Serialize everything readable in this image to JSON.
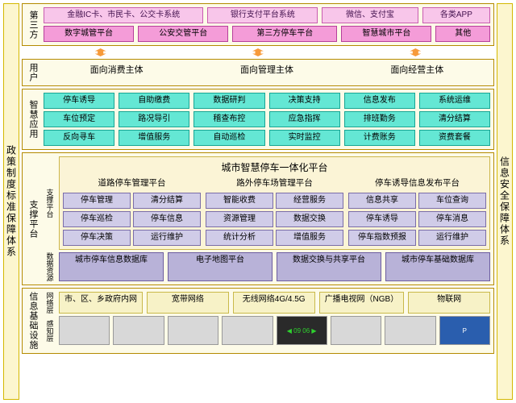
{
  "left_label": "政策制度标准保障体系",
  "right_label": "信息安全保障体系",
  "sections": {
    "third_party": {
      "label": "第三方",
      "row1": [
        "金融IC卡、市民卡、公交卡系统",
        "银行支付平台系统",
        "微信、支付宝",
        "各类APP"
      ],
      "row2": [
        "数字城管平台",
        "公安交管平台",
        "第三方停车平台",
        "智慧城市平台",
        "其他"
      ]
    },
    "user": {
      "label": "用户",
      "items": [
        "面向消费主体",
        "面向管理主体",
        "面向经营主体"
      ]
    },
    "app": {
      "label": "智慧应用",
      "rows": [
        [
          "停车诱导",
          "自助缴费",
          "数据研判",
          "决策支持",
          "信息发布",
          "系统运维"
        ],
        [
          "车位预定",
          "路况导引",
          "稽查布控",
          "应急指挥",
          "排班勤务",
          "清分结算"
        ],
        [
          "反向寻车",
          "增值服务",
          "自动巡检",
          "实时监控",
          "计费账务",
          "资费套餐"
        ]
      ]
    },
    "support": {
      "label": "支撑平台",
      "panel_title": "城市智慧停车一体化平台",
      "sub1": "支撑平台",
      "sub2": "数据资源",
      "cols": [
        {
          "title": "道路停车管理平台",
          "rows": [
            [
              "停车管理",
              "清分结算"
            ],
            [
              "停车巡检",
              "停车信息"
            ],
            [
              "停车决策",
              "运行维护"
            ]
          ]
        },
        {
          "title": "路外停车场管理平台",
          "rows": [
            [
              "智能收费",
              "经营服务"
            ],
            [
              "资源管理",
              "数据交换"
            ],
            [
              "统计分析",
              "增值服务"
            ]
          ]
        },
        {
          "title": "停车诱导信息发布平台",
          "rows": [
            [
              "信息共享",
              "车位查询"
            ],
            [
              "停车诱导",
              "停车消息"
            ],
            [
              "停车指数预报",
              "运行维护"
            ]
          ]
        }
      ],
      "db_row": [
        "城市停车信息数据库",
        "电子地图平台",
        "数据交换与共享平台",
        "城市停车基础数据库"
      ]
    },
    "infra": {
      "label": "信息基础设施",
      "sub1": "网络层",
      "sub2": "感知层",
      "net": [
        "市、区、乡政府内网",
        "宽带网络",
        "无线网络4G/4.5G",
        "广播电视网（NGB）",
        "物联网"
      ],
      "sense_placeholders": [
        "",
        "",
        "",
        "",
        "◀ 09  06 ▶",
        "",
        "",
        "P"
      ]
    }
  },
  "colors": {
    "pink": "#f8c6ea",
    "pink2": "#f49cd8",
    "cyan": "#64e7d4",
    "lav": "#d0cce8",
    "lav2": "#b8b2d8",
    "orange": "#ffd07a",
    "pale": "#f7f2c7",
    "vlabel_bg": "#fcf6cf",
    "section_bg": "#fdfbe8"
  }
}
